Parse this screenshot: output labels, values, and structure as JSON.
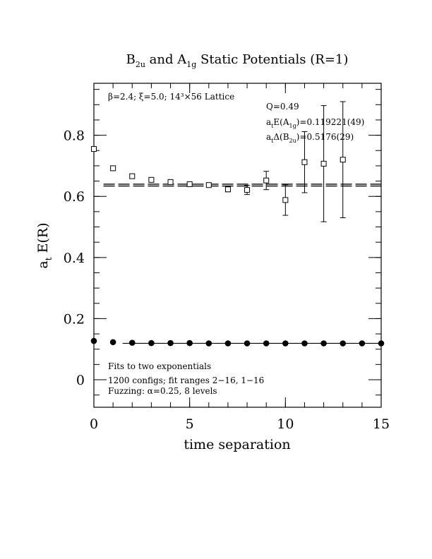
{
  "chart_data": {
    "type": "scatter",
    "title_parts": {
      "b": "B",
      "b_sub": "2u",
      "and": " and A",
      "a_sub": "1g",
      "rest": " Static Potentials (R=1)"
    },
    "xlabel": "time separation",
    "ylabel_main": "a",
    "ylabel_sub": "t",
    "ylabel_rest": " E(R)",
    "xlim": [
      0,
      15
    ],
    "ylim": [
      -0.09,
      0.97
    ],
    "x_ticks": [
      0,
      5,
      10,
      15
    ],
    "x_tick_labels": [
      "0",
      "5",
      "10",
      "15"
    ],
    "y_ticks": [
      0,
      0.2,
      0.4,
      0.6,
      0.8
    ],
    "y_tick_labels": [
      "0",
      "0.2",
      "0.4",
      "0.6",
      "0.8"
    ],
    "x_minor_step": 1,
    "y_minor_step": 0.05,
    "lattice_label": {
      "beta": "β=2.4; ξ=5.0; 14³×56 Lattice"
    },
    "fit_info": {
      "q": "Q=0.49",
      "a1g_a": "a",
      "a1g_t": "t",
      "a1g_mid": "E(A",
      "a1g_sub": "1g",
      "a1g_val": ")=0.119221(49)",
      "b2u_a": "a",
      "b2u_t": "t",
      "b2u_mid": "Δ(B",
      "b2u_sub": "2u",
      "b2u_val": ")=0.5176(29)"
    },
    "notes": [
      "Fits to two exponentials",
      "1200 configs; fit ranges 2−16, 1−16",
      "Fuzzing: α=0.25, 8 levels"
    ],
    "series": [
      {
        "marker": "open-square",
        "x": [
          0,
          1,
          2,
          3,
          4,
          5,
          6,
          7,
          8,
          9,
          10,
          11,
          12
        ],
        "y": [
          0.755,
          0.692,
          0.666,
          0.654,
          0.647,
          0.64,
          0.637,
          0.623,
          0.621,
          0.652,
          0.588,
          0.712,
          0.707
        ],
        "err": [
          0.002,
          0.002,
          0.002,
          0.002,
          0.003,
          0.003,
          0.005,
          0.008,
          0.015,
          0.03,
          0.05,
          0.1,
          0.19
        ]
      },
      {
        "marker": "filled-circle",
        "x": [
          0,
          1,
          2,
          3,
          4,
          5,
          6,
          7,
          8,
          9,
          10,
          11,
          12,
          13,
          14,
          15
        ],
        "y": [
          0.127,
          0.123,
          0.121,
          0.12,
          0.12,
          0.12,
          0.119,
          0.119,
          0.119,
          0.119,
          0.119,
          0.119,
          0.119,
          0.119,
          0.119,
          0.119
        ],
        "err": [
          0.001,
          0.001,
          0.001,
          0.001,
          0.001,
          0.001,
          0.001,
          0.001,
          0.001,
          0.001,
          0.001,
          0.001,
          0.001,
          0.001,
          0.001,
          0.001
        ]
      },
      {
        "marker": "open-square",
        "x": [
          13
        ],
        "y": [
          0.72
        ],
        "err": [
          0.19
        ]
      }
    ],
    "fit_lines": [
      {
        "style": "dashed-band",
        "x": [
          0.5,
          15
        ],
        "y": 0.6369,
        "half_width": 0.003
      },
      {
        "style": "solid",
        "x": [
          1.5,
          15
        ],
        "y": 0.1192
      }
    ]
  }
}
